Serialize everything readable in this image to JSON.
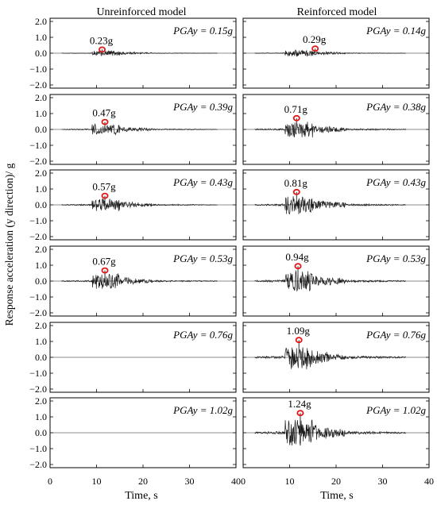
{
  "figure": {
    "column_titles": [
      "Unreinforced model",
      "Reinforced model"
    ],
    "ylabel": "Response acceleration (y direction)/ g",
    "xlabel": "Time, s"
  },
  "chart_data": {
    "type": "line",
    "x_ticks": [
      0,
      10,
      20,
      30,
      40
    ],
    "y_ticks": [
      "2.0",
      "1.0",
      "0.0",
      "−1.0",
      "−2.0"
    ],
    "xlim": [
      0,
      40
    ],
    "ylim": [
      -2.0,
      2.0
    ],
    "grid": false,
    "panels": [
      {
        "column": 0,
        "row": 0,
        "pga_label": "PGAy = 0.15g",
        "pga_y": 0.15,
        "peak_label": "0.23g",
        "peak_value": 0.23,
        "peak_time": 11.2,
        "record": true
      },
      {
        "column": 1,
        "row": 0,
        "pga_label": "PGAy = 0.14g",
        "pga_y": 0.14,
        "peak_label": "0.29g",
        "peak_value": 0.29,
        "peak_time": 15.5,
        "record": true
      },
      {
        "column": 0,
        "row": 1,
        "pga_label": "PGAy = 0.39g",
        "pga_y": 0.39,
        "peak_label": "0.47g",
        "peak_value": 0.47,
        "peak_time": 11.8,
        "record": true
      },
      {
        "column": 1,
        "row": 1,
        "pga_label": "PGAy = 0.38g",
        "pga_y": 0.38,
        "peak_label": "0.71g",
        "peak_value": 0.71,
        "peak_time": 11.5,
        "record": true
      },
      {
        "column": 0,
        "row": 2,
        "pga_label": "PGAy = 0.43g",
        "pga_y": 0.43,
        "peak_label": "0.57g",
        "peak_value": 0.57,
        "peak_time": 11.8,
        "record": true
      },
      {
        "column": 1,
        "row": 2,
        "pga_label": "PGAy = 0.43g",
        "pga_y": 0.43,
        "peak_label": "0.81g",
        "peak_value": 0.81,
        "peak_time": 11.5,
        "record": true
      },
      {
        "column": 0,
        "row": 3,
        "pga_label": "PGAy = 0.53g",
        "pga_y": 0.53,
        "peak_label": "0.67g",
        "peak_value": 0.67,
        "peak_time": 11.8,
        "record": true
      },
      {
        "column": 1,
        "row": 3,
        "pga_label": "PGAy = 0.53g",
        "pga_y": 0.53,
        "peak_label": "0.94g",
        "peak_value": 0.94,
        "peak_time": 11.8,
        "record": true
      },
      {
        "column": 0,
        "row": 4,
        "pga_label": "PGAy = 0.76g",
        "pga_y": 0.76,
        "peak_label": "",
        "record": false
      },
      {
        "column": 1,
        "row": 4,
        "pga_label": "PGAy = 0.76g",
        "pga_y": 0.76,
        "peak_label": "1.09g",
        "peak_value": 1.09,
        "peak_time": 12.0,
        "record": true
      },
      {
        "column": 0,
        "row": 5,
        "pga_label": "PGAy = 1.02g",
        "pga_y": 1.02,
        "peak_label": "",
        "record": false
      },
      {
        "column": 1,
        "row": 5,
        "pga_label": "PGAy = 1.02g",
        "pga_y": 1.02,
        "peak_label": "1.24g",
        "peak_value": 1.24,
        "peak_time": 12.3,
        "record": true
      }
    ]
  },
  "colors": {
    "trace": "#1a1a1a",
    "marker": "#e01818",
    "frame": "#000000"
  }
}
